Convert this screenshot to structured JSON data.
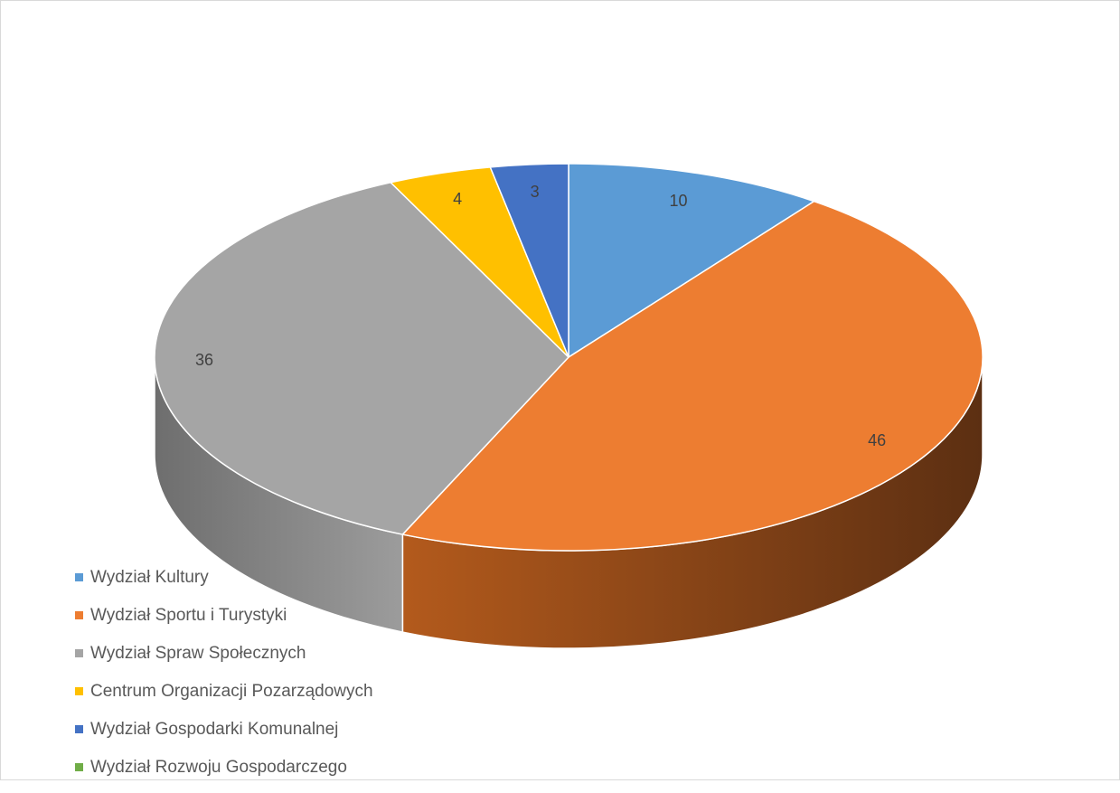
{
  "chart_data": {
    "type": "pie",
    "style": "3d",
    "categories": [
      "Wydział Kultury",
      "Wydział Sportu i Turystyki",
      "Wydział Spraw Społecznych",
      "Centrum Organizacji Pozarządowych",
      "Wydział Gospodarki Komunalnej",
      "Wydział Rozwoju Gospodarczego"
    ],
    "values": [
      10,
      46,
      36,
      4,
      3,
      0
    ],
    "data_labels": [
      "10",
      "46",
      "36",
      "4",
      "3",
      ""
    ],
    "colors": [
      "#5b9bd5",
      "#ed7d31",
      "#a5a5a5",
      "#ffc000",
      "#4472c4",
      "#70ad47"
    ],
    "side_colors": [
      "#2e6eaa",
      "#5e3212",
      "#6f6f6f",
      "#b58800",
      "#2a4e8c",
      "#4e7d31"
    ],
    "legend_position": "bottom-left",
    "title": ""
  }
}
